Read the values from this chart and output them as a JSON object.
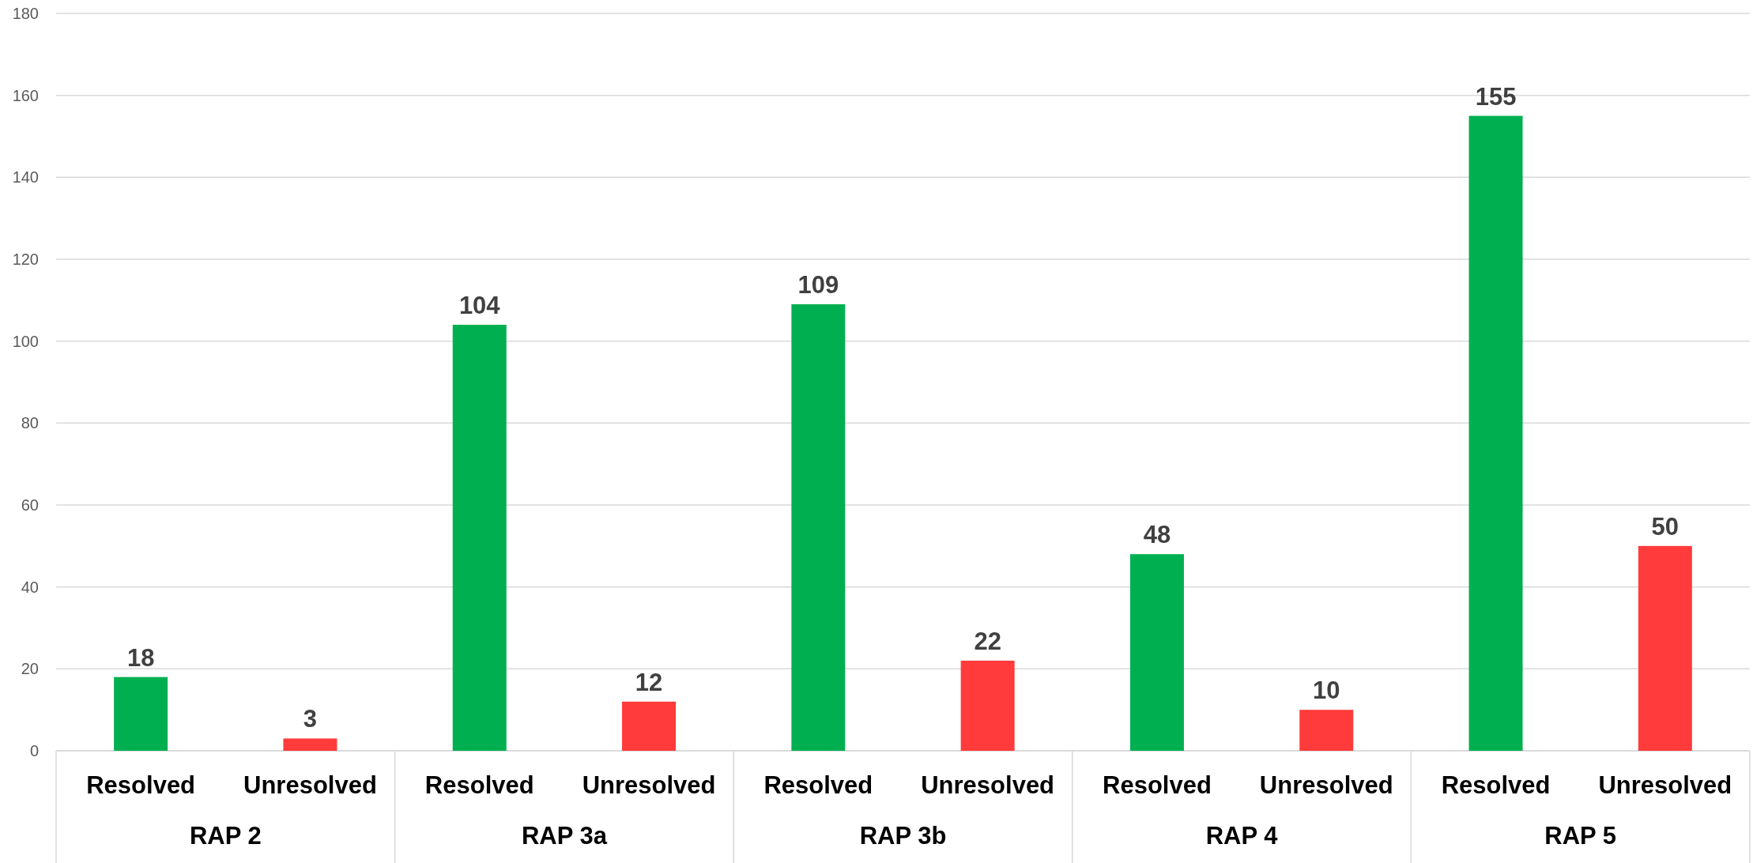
{
  "chart_data": {
    "type": "bar",
    "categories": [
      "RAP 2",
      "RAP 3a",
      "RAP 3b",
      "RAP 4",
      "RAP 5"
    ],
    "series": [
      {
        "name": "Resolved",
        "color": "#00b050",
        "values": [
          18,
          104,
          109,
          48,
          155
        ]
      },
      {
        "name": "Unresolved",
        "color": "#ff3b3b",
        "values": [
          3,
          12,
          22,
          10,
          50
        ]
      }
    ],
    "ylim": [
      0,
      180
    ],
    "yticks": [
      0,
      20,
      40,
      60,
      80,
      100,
      120,
      140,
      160,
      180
    ],
    "grid": "y",
    "data_labels": true
  }
}
